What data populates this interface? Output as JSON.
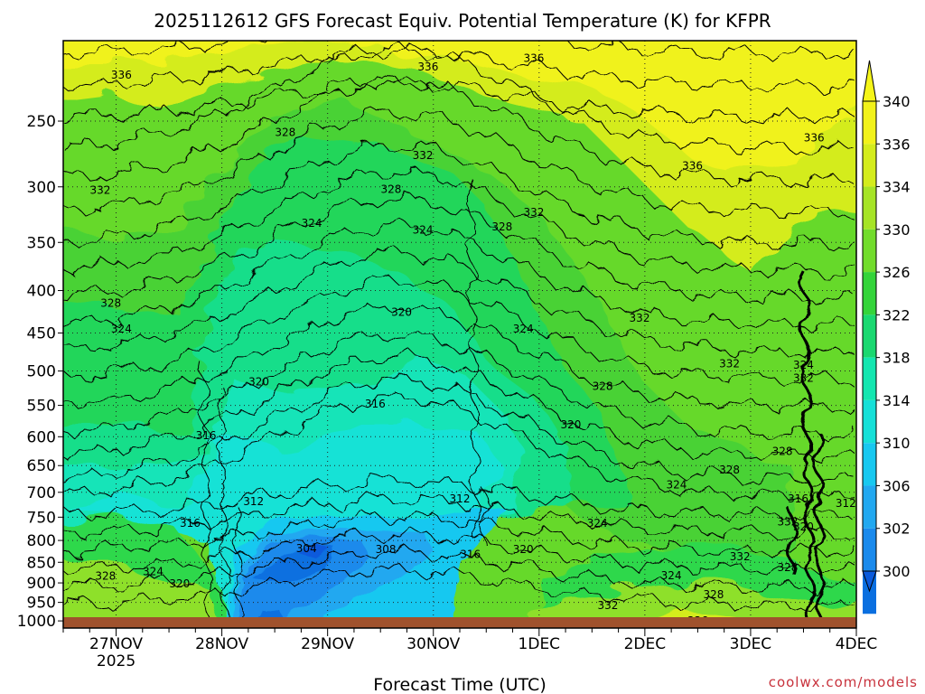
{
  "chart_data": {
    "type": "heatmap",
    "title": "2025112612 GFS Forecast Equiv. Potential Temperature (K) for KFPR",
    "xlabel": "Forecast Time (UTC)",
    "ylabel": "",
    "credit": "coolwx.com/models",
    "x_ticks": [
      {
        "label": "27NOV",
        "sublabel": "2025",
        "day": 1
      },
      {
        "label": "28NOV",
        "sublabel": "",
        "day": 2
      },
      {
        "label": "29NOV",
        "sublabel": "",
        "day": 3
      },
      {
        "label": "30NOV",
        "sublabel": "",
        "day": 4
      },
      {
        "label": "1DEC",
        "sublabel": "",
        "day": 5
      },
      {
        "label": "2DEC",
        "sublabel": "",
        "day": 6
      },
      {
        "label": "3DEC",
        "sublabel": "",
        "day": 7
      },
      {
        "label": "4DEC",
        "sublabel": "",
        "day": 8
      }
    ],
    "xlim": [
      0.5,
      8
    ],
    "pressure_levels": [
      250,
      300,
      350,
      400,
      450,
      500,
      550,
      600,
      650,
      700,
      750,
      800,
      850,
      900,
      950,
      1000
    ],
    "ylim": [
      1020,
      200
    ],
    "y_scale": "log",
    "colorbar": {
      "labels": [
        300,
        302,
        306,
        310,
        314,
        318,
        322,
        326,
        330,
        334,
        336,
        340
      ],
      "colors": [
        "#0a6fe0",
        "#1a8aec",
        "#22a8f0",
        "#18c8f0",
        "#16e0d8",
        "#14e6b0",
        "#1ad870",
        "#34d43a",
        "#72dc2c",
        "#a6e426",
        "#d4ec1c",
        "#f2f21a"
      ],
      "under_color": "#0a5adc",
      "over_color": "#f5f518"
    },
    "contour_labels": [
      {
        "text": "336",
        "day": 1.05,
        "p": 220
      },
      {
        "text": "336",
        "day": 3.95,
        "p": 215
      },
      {
        "text": "336",
        "day": 4.95,
        "p": 210
      },
      {
        "text": "336",
        "day": 6.45,
        "p": 283
      },
      {
        "text": "336",
        "day": 7.6,
        "p": 262
      },
      {
        "text": "328",
        "day": 2.6,
        "p": 258
      },
      {
        "text": "332",
        "day": 3.9,
        "p": 275
      },
      {
        "text": "328",
        "day": 3.6,
        "p": 302
      },
      {
        "text": "332",
        "day": 4.95,
        "p": 322
      },
      {
        "text": "328",
        "day": 4.65,
        "p": 335
      },
      {
        "text": "332",
        "day": 0.85,
        "p": 303
      },
      {
        "text": "324",
        "day": 2.85,
        "p": 332
      },
      {
        "text": "324",
        "day": 3.9,
        "p": 338
      },
      {
        "text": "328",
        "day": 0.95,
        "p": 414
      },
      {
        "text": "324",
        "day": 1.05,
        "p": 445
      },
      {
        "text": "320",
        "day": 3.7,
        "p": 425
      },
      {
        "text": "332",
        "day": 5.95,
        "p": 432
      },
      {
        "text": "324",
        "day": 4.85,
        "p": 445
      },
      {
        "text": "332",
        "day": 6.8,
        "p": 490
      },
      {
        "text": "324",
        "day": 7.5,
        "p": 492
      },
      {
        "text": "332",
        "day": 7.5,
        "p": 510
      },
      {
        "text": "320",
        "day": 2.35,
        "p": 515
      },
      {
        "text": "328",
        "day": 5.6,
        "p": 522
      },
      {
        "text": "316",
        "day": 3.45,
        "p": 548
      },
      {
        "text": "320",
        "day": 5.3,
        "p": 580
      },
      {
        "text": "316",
        "day": 1.85,
        "p": 598
      },
      {
        "text": "328",
        "day": 7.3,
        "p": 625
      },
      {
        "text": "328",
        "day": 6.8,
        "p": 658
      },
      {
        "text": "324",
        "day": 6.3,
        "p": 686
      },
      {
        "text": "316",
        "day": 0.4,
        "p": 713
      },
      {
        "text": "312",
        "day": 2.3,
        "p": 718
      },
      {
        "text": "312",
        "day": 4.25,
        "p": 713
      },
      {
        "text": "316",
        "day": 7.45,
        "p": 713
      },
      {
        "text": "312",
        "day": 7.9,
        "p": 722
      },
      {
        "text": "324",
        "day": 5.55,
        "p": 763
      },
      {
        "text": "332",
        "day": 7.35,
        "p": 760
      },
      {
        "text": "320",
        "day": 7.5,
        "p": 770
      },
      {
        "text": "316",
        "day": 1.7,
        "p": 763
      },
      {
        "text": "304",
        "day": 2.8,
        "p": 818
      },
      {
        "text": "308",
        "day": 3.55,
        "p": 820
      },
      {
        "text": "316",
        "day": 4.35,
        "p": 832
      },
      {
        "text": "320",
        "day": 4.85,
        "p": 820
      },
      {
        "text": "332",
        "day": 6.9,
        "p": 837
      },
      {
        "text": "328",
        "day": 7.35,
        "p": 862
      },
      {
        "text": "328",
        "day": 0.9,
        "p": 883
      },
      {
        "text": "324",
        "day": 1.35,
        "p": 872
      },
      {
        "text": "320",
        "day": 1.6,
        "p": 902
      },
      {
        "text": "324",
        "day": 6.25,
        "p": 882
      },
      {
        "text": "328",
        "day": 6.65,
        "p": 930
      },
      {
        "text": "332",
        "day": 0.3,
        "p": 940
      },
      {
        "text": "332",
        "day": 5.65,
        "p": 958
      },
      {
        "text": "336",
        "day": 6.5,
        "p": 1000
      },
      {
        "text": "328",
        "day": 4.4,
        "p": 1015
      }
    ],
    "grid": "dotted",
    "terrain_strip": "brown",
    "legend": "right"
  }
}
